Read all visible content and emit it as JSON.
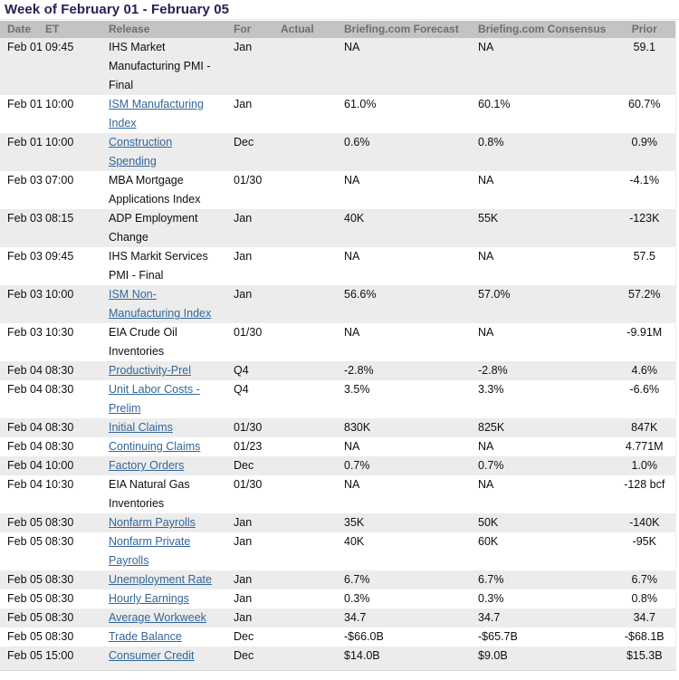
{
  "page_title": "Week of February 01 - February 05",
  "colors": {
    "title_text": "#232355",
    "link": "#336699",
    "header_bg": "#c2c3c3",
    "header_text": "#6f6f70",
    "stripe_bg": "#ececec",
    "body_text": "#0e0e0e"
  },
  "table": {
    "columns": [
      {
        "key": "date",
        "label": "Date"
      },
      {
        "key": "et",
        "label": "ET"
      },
      {
        "key": "release",
        "label": "Release"
      },
      {
        "key": "for",
        "label": "For"
      },
      {
        "key": "actual",
        "label": "Actual"
      },
      {
        "key": "forecast",
        "label": "Briefing.com Forecast"
      },
      {
        "key": "consensus",
        "label": "Briefing.com Consensus"
      },
      {
        "key": "prior",
        "label": "Prior"
      }
    ],
    "rows": [
      {
        "date": "Feb 01",
        "et": "09:45",
        "release": "IHS Market Manufacturing PMI - Final",
        "link": false,
        "for": "Jan",
        "actual": "",
        "forecast": "NA",
        "consensus": "NA",
        "prior": "59.1"
      },
      {
        "date": "Feb 01",
        "et": "10:00",
        "release": "ISM Manufacturing Index",
        "link": true,
        "for": "Jan",
        "actual": "",
        "forecast": "61.0%",
        "consensus": "60.1%",
        "prior": "60.7%"
      },
      {
        "date": "Feb 01",
        "et": "10:00",
        "release": "Construction Spending",
        "link": true,
        "for": "Dec",
        "actual": "",
        "forecast": "0.6%",
        "consensus": "0.8%",
        "prior": "0.9%"
      },
      {
        "date": "Feb 03",
        "et": "07:00",
        "release": "MBA Mortgage Applications Index",
        "link": false,
        "for": "01/30",
        "actual": "",
        "forecast": "NA",
        "consensus": "NA",
        "prior": "-4.1%"
      },
      {
        "date": "Feb 03",
        "et": "08:15",
        "release": "ADP Employment Change",
        "link": false,
        "for": "Jan",
        "actual": "",
        "forecast": "40K",
        "consensus": "55K",
        "prior": "-123K"
      },
      {
        "date": "Feb 03",
        "et": "09:45",
        "release": "IHS Markit Services PMI - Final",
        "link": false,
        "for": "Jan",
        "actual": "",
        "forecast": "NA",
        "consensus": "NA",
        "prior": "57.5"
      },
      {
        "date": "Feb 03",
        "et": "10:00",
        "release": "ISM Non-Manufacturing Index",
        "link": true,
        "for": "Jan",
        "actual": "",
        "forecast": "56.6%",
        "consensus": "57.0%",
        "prior": "57.2%"
      },
      {
        "date": "Feb 03",
        "et": "10:30",
        "release": "EIA Crude Oil Inventories",
        "link": false,
        "for": "01/30",
        "actual": "",
        "forecast": "NA",
        "consensus": "NA",
        "prior": "-9.91M"
      },
      {
        "date": "Feb 04",
        "et": "08:30",
        "release": "Productivity-Prel",
        "link": true,
        "for": "Q4",
        "actual": "",
        "forecast": "-2.8%",
        "consensus": "-2.8%",
        "prior": "4.6%"
      },
      {
        "date": "Feb 04",
        "et": "08:30",
        "release": "Unit Labor Costs - Prelim",
        "link": true,
        "for": "Q4",
        "actual": "",
        "forecast": "3.5%",
        "consensus": "3.3%",
        "prior": "-6.6%"
      },
      {
        "date": "Feb 04",
        "et": "08:30",
        "release": "Initial Claims",
        "link": true,
        "for": "01/30",
        "actual": "",
        "forecast": "830K",
        "consensus": "825K",
        "prior": "847K"
      },
      {
        "date": "Feb 04",
        "et": "08:30",
        "release": "Continuing Claims",
        "link": true,
        "for": "01/23",
        "actual": "",
        "forecast": "NA",
        "consensus": "NA",
        "prior": "4.771M"
      },
      {
        "date": "Feb 04",
        "et": "10:00",
        "release": "Factory Orders",
        "link": true,
        "for": "Dec",
        "actual": "",
        "forecast": "0.7%",
        "consensus": "0.7%",
        "prior": "1.0%"
      },
      {
        "date": "Feb 04",
        "et": "10:30",
        "release": "EIA Natural Gas Inventories",
        "link": false,
        "for": "01/30",
        "actual": "",
        "forecast": "NA",
        "consensus": "NA",
        "prior": "-128 bcf"
      },
      {
        "date": "Feb 05",
        "et": "08:30",
        "release": "Nonfarm Payrolls",
        "link": true,
        "for": "Jan",
        "actual": "",
        "forecast": "35K",
        "consensus": "50K",
        "prior": "-140K"
      },
      {
        "date": "Feb 05",
        "et": "08:30",
        "release": "Nonfarm Private Payrolls",
        "link": true,
        "for": "Jan",
        "actual": "",
        "forecast": "40K",
        "consensus": "60K",
        "prior": "-95K"
      },
      {
        "date": "Feb 05",
        "et": "08:30",
        "release": "Unemployment Rate",
        "link": true,
        "for": "Jan",
        "actual": "",
        "forecast": "6.7%",
        "consensus": "6.7%",
        "prior": "6.7%"
      },
      {
        "date": "Feb 05",
        "et": "08:30",
        "release": "Hourly Earnings",
        "link": true,
        "for": "Jan",
        "actual": "",
        "forecast": "0.3%",
        "consensus": "0.3%",
        "prior": "0.8%"
      },
      {
        "date": "Feb 05",
        "et": "08:30",
        "release": "Average Workweek",
        "link": true,
        "for": "Jan",
        "actual": "",
        "forecast": "34.7",
        "consensus": "34.7",
        "prior": "34.7"
      },
      {
        "date": "Feb 05",
        "et": "08:30",
        "release": "Trade Balance",
        "link": true,
        "for": "Dec",
        "actual": "",
        "forecast": "-$66.0B",
        "consensus": "-$65.7B",
        "prior": "-$68.1B"
      },
      {
        "date": "Feb 05",
        "et": "15:00",
        "release": "Consumer Credit",
        "link": true,
        "for": "Dec",
        "actual": "",
        "forecast": "$14.0B",
        "consensus": "$9.0B",
        "prior": "$15.3B"
      }
    ]
  }
}
